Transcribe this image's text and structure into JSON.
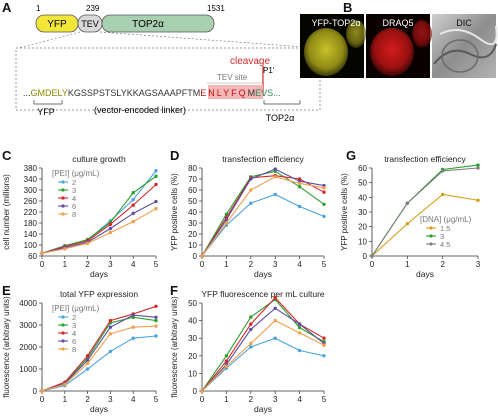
{
  "panels": {
    "A": "A",
    "B": "B",
    "C": "C",
    "D": "D",
    "E": "E",
    "F": "F",
    "G": "G"
  },
  "construct": {
    "coord_start": "1",
    "coord_mid": "239",
    "coord_end": "1531",
    "yfp_label": "YFP",
    "tev_label": "TEV",
    "top2_label": "TOP2α",
    "cleavage_label": "cleavage",
    "p1_label": "P1'",
    "tev_site_label": "TEV site",
    "seq_dots_left": "...",
    "seq_gmdely": "GMDELY",
    "seq_linker": "KGSSPSTSLYKKAGSAAAPFTM",
    "seq_tev": "ENLYFQ",
    "seq_m": "M",
    "seq_evs": "EVS...",
    "yfp_bracket_label": "YFP",
    "linker_label": "(vector-encoded linker)",
    "top2_bracket_label": "TOP2α"
  },
  "images": {
    "yfp_title": "YFP-TOP2α",
    "draq5_title": "DRAQ5",
    "dic_title": "DIC"
  },
  "colors": {
    "s2": "#4aa3df",
    "s3": "#2ca02c",
    "s4": "#d62728",
    "s6": "#5e4fa2",
    "s8": "#f0a04b",
    "g15": "#d4a017",
    "g3": "#2ca02c",
    "g45": "#7f7f7f",
    "yfp_box": "#f2e63a",
    "top2_box": "#a8cfb0",
    "tev_box": "#d9d9d9"
  },
  "chart_data": [
    {
      "id": "C",
      "type": "line",
      "title": "culture growth",
      "xlabel": "days",
      "ylabel": "cell number (millions)",
      "xlim": [
        0,
        5
      ],
      "ylim": [
        60,
        380
      ],
      "xticks": [
        0,
        1,
        2,
        3,
        4,
        5
      ],
      "yticks": [
        60,
        100,
        140,
        180,
        220,
        260,
        300,
        340,
        380
      ],
      "legend_title": "[PEI] (μg/mL)",
      "series": [
        {
          "name": "2",
          "x": [
            0,
            1,
            2,
            3,
            4,
            5
          ],
          "values": [
            70,
            98,
            118,
            188,
            265,
            370
          ]
        },
        {
          "name": "3",
          "x": [
            0,
            1,
            2,
            3,
            4,
            5
          ],
          "values": [
            70,
            96,
            120,
            182,
            290,
            350
          ]
        },
        {
          "name": "4",
          "x": [
            0,
            1,
            2,
            3,
            4,
            5
          ],
          "values": [
            70,
            94,
            115,
            175,
            245,
            320
          ]
        },
        {
          "name": "6",
          "x": [
            0,
            1,
            2,
            3,
            4,
            5
          ],
          "values": [
            70,
            90,
            110,
            160,
            215,
            258
          ]
        },
        {
          "name": "8",
          "x": [
            0,
            1,
            2,
            3,
            4,
            5
          ],
          "values": [
            70,
            86,
            106,
            145,
            185,
            232
          ]
        }
      ]
    },
    {
      "id": "D",
      "type": "line",
      "title": "transfection efficiency",
      "xlabel": "days",
      "ylabel": "YFP positive cells (%)",
      "xlim": [
        0,
        5
      ],
      "ylim": [
        0,
        80
      ],
      "xticks": [
        0,
        1,
        2,
        3,
        4,
        5
      ],
      "yticks": [
        0,
        10,
        20,
        30,
        40,
        50,
        60,
        70,
        80
      ],
      "series": [
        {
          "name": "2",
          "x": [
            0,
            1,
            2,
            3,
            4,
            5
          ],
          "values": [
            0,
            28,
            48,
            56,
            45,
            36
          ]
        },
        {
          "name": "3",
          "x": [
            0,
            1,
            2,
            3,
            4,
            5
          ],
          "values": [
            0,
            38,
            72,
            77,
            63,
            47
          ]
        },
        {
          "name": "4",
          "x": [
            0,
            1,
            2,
            3,
            4,
            5
          ],
          "values": [
            0,
            35,
            71,
            73,
            70,
            58
          ]
        },
        {
          "name": "6",
          "x": [
            0,
            1,
            2,
            3,
            4,
            5
          ],
          "values": [
            0,
            33,
            70,
            79,
            68,
            64
          ]
        },
        {
          "name": "8",
          "x": [
            0,
            1,
            2,
            3,
            4,
            5
          ],
          "values": [
            0,
            30,
            60,
            72,
            66,
            62
          ]
        }
      ]
    },
    {
      "id": "E",
      "type": "line",
      "title": "total YFP expression",
      "xlabel": "days",
      "ylabel": "fluorescence (arbitrary units)",
      "xlim": [
        0,
        5
      ],
      "ylim": [
        0,
        4000
      ],
      "xticks": [
        0,
        1,
        2,
        3,
        4,
        5
      ],
      "yticks": [
        0,
        1000,
        2000,
        3000,
        4000
      ],
      "legend_title": "[PEI] (μg/mL)",
      "series": [
        {
          "name": "2",
          "x": [
            0,
            1,
            2,
            3,
            4,
            5
          ],
          "values": [
            0,
            250,
            1000,
            1800,
            2400,
            2500
          ]
        },
        {
          "name": "3",
          "x": [
            0,
            1,
            2,
            3,
            4,
            5
          ],
          "values": [
            0,
            350,
            1500,
            3100,
            3350,
            3200
          ]
        },
        {
          "name": "4",
          "x": [
            0,
            1,
            2,
            3,
            4,
            5
          ],
          "values": [
            0,
            400,
            1600,
            3200,
            3500,
            3850
          ]
        },
        {
          "name": "6",
          "x": [
            0,
            1,
            2,
            3,
            4,
            5
          ],
          "values": [
            0,
            330,
            1400,
            2900,
            3450,
            3350
          ]
        },
        {
          "name": "8",
          "x": [
            0,
            1,
            2,
            3,
            4,
            5
          ],
          "values": [
            0,
            300,
            1250,
            2600,
            2900,
            2950
          ]
        }
      ]
    },
    {
      "id": "F",
      "type": "line",
      "title": "YFP fluorescence per mL culture",
      "xlabel": "days",
      "ylabel": "fluorescence (arbitrary units)",
      "xlim": [
        0,
        5
      ],
      "ylim": [
        0,
        50
      ],
      "xticks": [
        0,
        1,
        2,
        3,
        4,
        5
      ],
      "yticks": [
        0,
        10,
        20,
        30,
        40,
        50
      ],
      "series": [
        {
          "name": "2",
          "x": [
            0,
            1,
            2,
            3,
            4,
            5
          ],
          "values": [
            0,
            13,
            25,
            30,
            23,
            20
          ]
        },
        {
          "name": "3",
          "x": [
            0,
            1,
            2,
            3,
            4,
            5
          ],
          "values": [
            0,
            20,
            42,
            52,
            36,
            28
          ]
        },
        {
          "name": "4",
          "x": [
            0,
            1,
            2,
            3,
            4,
            5
          ],
          "values": [
            0,
            17,
            38,
            53,
            38,
            30
          ]
        },
        {
          "name": "6",
          "x": [
            0,
            1,
            2,
            3,
            4,
            5
          ],
          "values": [
            0,
            15,
            35,
            47,
            38,
            27
          ]
        },
        {
          "name": "8",
          "x": [
            0,
            1,
            2,
            3,
            4,
            5
          ],
          "values": [
            0,
            14,
            27,
            40,
            33,
            26
          ]
        }
      ]
    },
    {
      "id": "G",
      "type": "line",
      "title": "transfection efficiency",
      "xlabel": "days",
      "ylabel": "YFP positive cells (%)",
      "xlim": [
        0,
        3
      ],
      "ylim": [
        0,
        60
      ],
      "xticks": [
        0,
        1,
        2,
        3
      ],
      "yticks": [
        0,
        10,
        20,
        30,
        40,
        50,
        60
      ],
      "legend_title": "[DNA] (μg/mL)",
      "series": [
        {
          "name": "1.5",
          "x": [
            0,
            1,
            2,
            3
          ],
          "values": [
            0,
            22,
            42,
            38
          ]
        },
        {
          "name": "3",
          "x": [
            0,
            1,
            2,
            3
          ],
          "values": [
            0,
            36,
            59,
            62
          ]
        },
        {
          "name": "4.5",
          "x": [
            0,
            1,
            2,
            3
          ],
          "values": [
            0,
            36,
            58,
            60
          ]
        }
      ]
    }
  ]
}
